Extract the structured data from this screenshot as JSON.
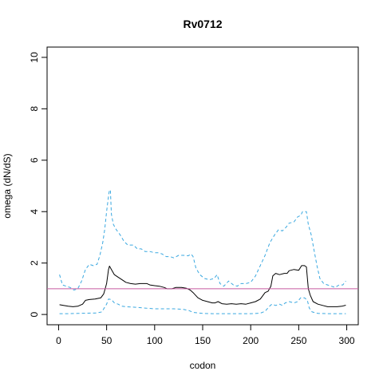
{
  "chart_data": {
    "type": "line",
    "title": "Rv0712",
    "xlabel": "codon",
    "ylabel": "omega (dN/dS)",
    "xlim": [
      -12,
      312
    ],
    "ylim": [
      -0.4,
      10.4
    ],
    "xticks": [
      0,
      50,
      100,
      150,
      200,
      250,
      300
    ],
    "yticks": [
      0,
      2,
      4,
      6,
      8,
      10
    ],
    "grid": false,
    "reference_line": {
      "y": 1,
      "color": "#c85aa0"
    },
    "series": [
      {
        "role": "estimate",
        "color": "#000000",
        "dash": "solid",
        "points": [
          [
            1,
            0.38
          ],
          [
            5,
            0.35
          ],
          [
            10,
            0.32
          ],
          [
            15,
            0.3
          ],
          [
            20,
            0.32
          ],
          [
            25,
            0.4
          ],
          [
            28,
            0.55
          ],
          [
            32,
            0.58
          ],
          [
            38,
            0.6
          ],
          [
            44,
            0.65
          ],
          [
            47,
            0.8
          ],
          [
            50,
            1.2
          ],
          [
            52,
            1.75
          ],
          [
            53,
            1.88
          ],
          [
            55,
            1.75
          ],
          [
            58,
            1.55
          ],
          [
            62,
            1.45
          ],
          [
            66,
            1.35
          ],
          [
            70,
            1.25
          ],
          [
            75,
            1.2
          ],
          [
            80,
            1.18
          ],
          [
            85,
            1.2
          ],
          [
            92,
            1.2
          ],
          [
            95,
            1.15
          ],
          [
            100,
            1.12
          ],
          [
            105,
            1.1
          ],
          [
            110,
            1.05
          ],
          [
            113,
            1.0
          ],
          [
            118,
            1.0
          ],
          [
            122,
            1.05
          ],
          [
            128,
            1.05
          ],
          [
            133,
            1.02
          ],
          [
            137,
            0.95
          ],
          [
            140,
            0.85
          ],
          [
            145,
            0.65
          ],
          [
            150,
            0.55
          ],
          [
            155,
            0.5
          ],
          [
            160,
            0.45
          ],
          [
            163,
            0.45
          ],
          [
            166,
            0.5
          ],
          [
            170,
            0.42
          ],
          [
            175,
            0.4
          ],
          [
            180,
            0.42
          ],
          [
            185,
            0.4
          ],
          [
            190,
            0.42
          ],
          [
            195,
            0.4
          ],
          [
            200,
            0.45
          ],
          [
            205,
            0.5
          ],
          [
            210,
            0.6
          ],
          [
            215,
            0.85
          ],
          [
            218,
            0.9
          ],
          [
            221,
            1.1
          ],
          [
            223,
            1.5
          ],
          [
            226,
            1.6
          ],
          [
            230,
            1.55
          ],
          [
            235,
            1.6
          ],
          [
            238,
            1.6
          ],
          [
            240,
            1.7
          ],
          [
            245,
            1.75
          ],
          [
            250,
            1.72
          ],
          [
            253,
            1.9
          ],
          [
            256,
            1.9
          ],
          [
            258,
            1.85
          ],
          [
            260,
            1.0
          ],
          [
            262,
            0.75
          ],
          [
            265,
            0.5
          ],
          [
            270,
            0.4
          ],
          [
            275,
            0.35
          ],
          [
            280,
            0.3
          ],
          [
            285,
            0.3
          ],
          [
            290,
            0.3
          ],
          [
            295,
            0.32
          ],
          [
            299,
            0.36
          ]
        ]
      },
      {
        "role": "upper-bound",
        "color": "#3aa8e0",
        "dash": "dashed",
        "points": [
          [
            1,
            1.55
          ],
          [
            4,
            1.15
          ],
          [
            8,
            1.1
          ],
          [
            12,
            1.05
          ],
          [
            16,
            0.95
          ],
          [
            20,
            1.0
          ],
          [
            24,
            1.3
          ],
          [
            28,
            1.75
          ],
          [
            32,
            1.95
          ],
          [
            36,
            1.9
          ],
          [
            40,
            1.95
          ],
          [
            43,
            2.3
          ],
          [
            46,
            2.8
          ],
          [
            48,
            3.3
          ],
          [
            50,
            4.0
          ],
          [
            52,
            4.6
          ],
          [
            53,
            4.85
          ],
          [
            54,
            4.8
          ],
          [
            55,
            3.9
          ],
          [
            57,
            3.5
          ],
          [
            60,
            3.3
          ],
          [
            64,
            3.1
          ],
          [
            68,
            2.85
          ],
          [
            72,
            2.7
          ],
          [
            78,
            2.7
          ],
          [
            82,
            2.55
          ],
          [
            86,
            2.55
          ],
          [
            90,
            2.45
          ],
          [
            95,
            2.45
          ],
          [
            100,
            2.4
          ],
          [
            104,
            2.4
          ],
          [
            108,
            2.35
          ],
          [
            112,
            2.25
          ],
          [
            116,
            2.25
          ],
          [
            120,
            2.2
          ],
          [
            125,
            2.3
          ],
          [
            130,
            2.3
          ],
          [
            135,
            2.28
          ],
          [
            138,
            2.35
          ],
          [
            140,
            2.25
          ],
          [
            143,
            1.8
          ],
          [
            147,
            1.55
          ],
          [
            152,
            1.4
          ],
          [
            157,
            1.35
          ],
          [
            162,
            1.4
          ],
          [
            165,
            1.55
          ],
          [
            168,
            1.2
          ],
          [
            172,
            1.1
          ],
          [
            177,
            1.3
          ],
          [
            182,
            1.15
          ],
          [
            186,
            1.1
          ],
          [
            190,
            1.2
          ],
          [
            195,
            1.2
          ],
          [
            200,
            1.25
          ],
          [
            205,
            1.5
          ],
          [
            210,
            1.9
          ],
          [
            215,
            2.3
          ],
          [
            220,
            2.8
          ],
          [
            225,
            3.1
          ],
          [
            229,
            3.3
          ],
          [
            233,
            3.25
          ],
          [
            237,
            3.4
          ],
          [
            240,
            3.55
          ],
          [
            245,
            3.6
          ],
          [
            249,
            3.8
          ],
          [
            252,
            3.85
          ],
          [
            254,
            4.0
          ],
          [
            258,
            4.0
          ],
          [
            260,
            3.5
          ],
          [
            263,
            3.1
          ],
          [
            266,
            2.5
          ],
          [
            269,
            1.9
          ],
          [
            272,
            1.4
          ],
          [
            276,
            1.2
          ],
          [
            280,
            1.15
          ],
          [
            284,
            1.1
          ],
          [
            288,
            1.05
          ],
          [
            292,
            1.15
          ],
          [
            296,
            1.15
          ],
          [
            299,
            1.3
          ]
        ]
      },
      {
        "role": "lower-bound",
        "color": "#3aa8e0",
        "dash": "dashed",
        "points": [
          [
            1,
            0.03
          ],
          [
            10,
            0.03
          ],
          [
            20,
            0.04
          ],
          [
            30,
            0.05
          ],
          [
            40,
            0.06
          ],
          [
            45,
            0.1
          ],
          [
            50,
            0.4
          ],
          [
            52,
            0.6
          ],
          [
            55,
            0.58
          ],
          [
            58,
            0.45
          ],
          [
            62,
            0.4
          ],
          [
            66,
            0.32
          ],
          [
            70,
            0.3
          ],
          [
            80,
            0.28
          ],
          [
            90,
            0.25
          ],
          [
            100,
            0.22
          ],
          [
            110,
            0.22
          ],
          [
            120,
            0.22
          ],
          [
            130,
            0.2
          ],
          [
            136,
            0.15
          ],
          [
            140,
            0.08
          ],
          [
            150,
            0.04
          ],
          [
            160,
            0.03
          ],
          [
            170,
            0.03
          ],
          [
            180,
            0.03
          ],
          [
            190,
            0.03
          ],
          [
            200,
            0.03
          ],
          [
            210,
            0.05
          ],
          [
            215,
            0.12
          ],
          [
            219,
            0.3
          ],
          [
            222,
            0.4
          ],
          [
            226,
            0.35
          ],
          [
            230,
            0.4
          ],
          [
            233,
            0.35
          ],
          [
            236,
            0.45
          ],
          [
            240,
            0.5
          ],
          [
            245,
            0.45
          ],
          [
            249,
            0.5
          ],
          [
            252,
            0.65
          ],
          [
            256,
            0.65
          ],
          [
            259,
            0.55
          ],
          [
            261,
            0.25
          ],
          [
            264,
            0.1
          ],
          [
            270,
            0.04
          ],
          [
            280,
            0.03
          ],
          [
            290,
            0.03
          ],
          [
            299,
            0.03
          ]
        ]
      }
    ]
  }
}
